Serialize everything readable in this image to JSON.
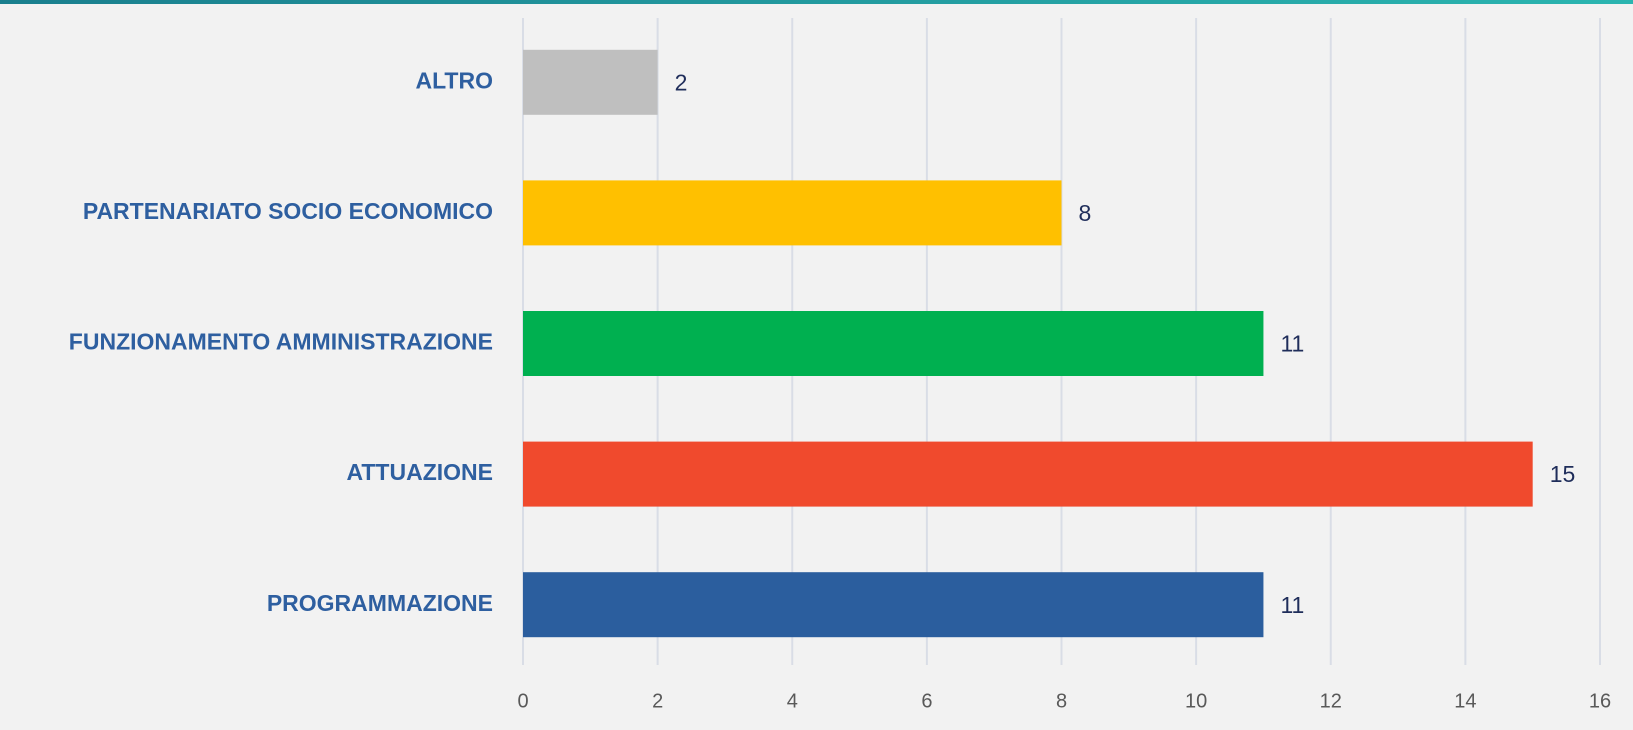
{
  "chart_data": {
    "type": "barh",
    "categories": [
      "ALTRO",
      "PARTENARIATO SOCIO ECONOMICO",
      "FUNZIONAMENTO AMMINISTRAZIONE",
      "ATTUAZIONE",
      "PROGRAMMAZIONE"
    ],
    "values": [
      2,
      8,
      11,
      15,
      11
    ],
    "colors": [
      "#bfbfbf",
      "#ffc000",
      "#00b050",
      "#f04a2d",
      "#2b5e9e"
    ],
    "xlim": [
      0,
      16
    ],
    "xticks": [
      0,
      2,
      4,
      6,
      8,
      10,
      12,
      14,
      16
    ],
    "grid": true
  }
}
